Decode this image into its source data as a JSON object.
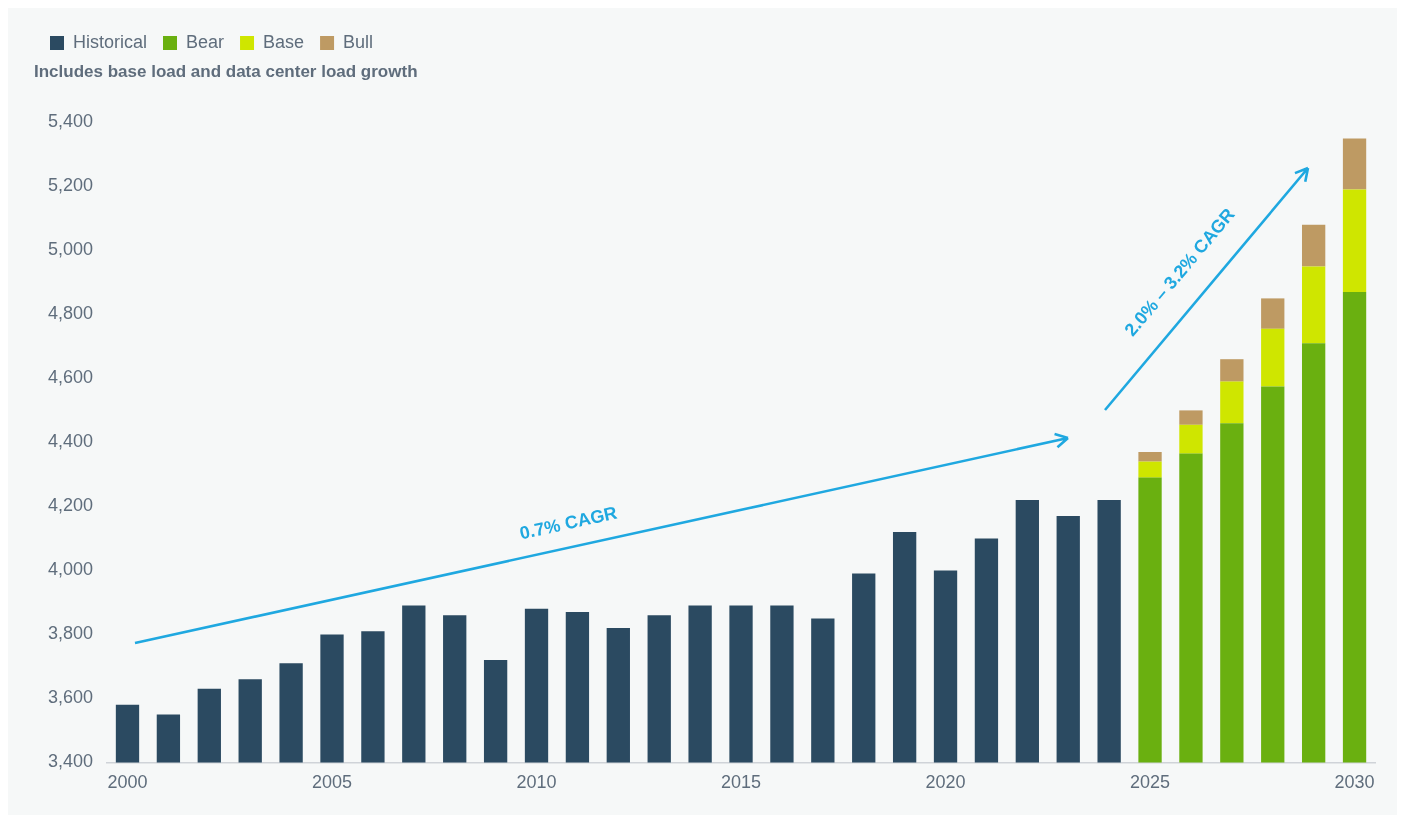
{
  "chart_data": {
    "type": "bar",
    "subtitle": "Includes base load and data center load growth",
    "categories": [
      "2000",
      null,
      null,
      null,
      null,
      "2005",
      null,
      null,
      null,
      null,
      "2010",
      null,
      null,
      null,
      null,
      "2015",
      null,
      null,
      null,
      null,
      "2020",
      null,
      null,
      null,
      null,
      "2025",
      null,
      null,
      null,
      null,
      "2030"
    ],
    "series": [
      {
        "name": "Historical",
        "color": "#2b4a61",
        "values": [
          3580,
          3550,
          3630,
          3660,
          3710,
          3800,
          3810,
          3890,
          3860,
          3720,
          3880,
          3870,
          3820,
          3860,
          3890,
          3890,
          3890,
          3850,
          3990,
          4120,
          4000,
          4100,
          4220,
          4170,
          4220,
          null,
          null,
          null,
          null,
          null,
          null
        ]
      },
      {
        "name": "Bear",
        "color": "#6ab010",
        "values": [
          null,
          null,
          null,
          null,
          null,
          null,
          null,
          null,
          null,
          null,
          null,
          null,
          null,
          null,
          null,
          null,
          null,
          null,
          null,
          null,
          null,
          null,
          null,
          null,
          null,
          4290,
          4365,
          4460,
          4575,
          4710,
          4870
        ]
      },
      {
        "name": "Base",
        "color": "#cfe600",
        "values": [
          null,
          null,
          null,
          null,
          null,
          null,
          null,
          null,
          null,
          null,
          null,
          null,
          null,
          null,
          null,
          null,
          null,
          null,
          null,
          null,
          null,
          null,
          null,
          null,
          null,
          50,
          90,
          130,
          180,
          240,
          320
        ],
        "base": [
          null,
          null,
          null,
          null,
          null,
          null,
          null,
          null,
          null,
          null,
          null,
          null,
          null,
          null,
          null,
          null,
          null,
          null,
          null,
          null,
          null,
          null,
          null,
          null,
          null,
          4290,
          4365,
          4460,
          4575,
          4710,
          4870
        ]
      },
      {
        "name": "Bull",
        "color": "#be9a63",
        "values": [
          null,
          null,
          null,
          null,
          null,
          null,
          null,
          null,
          null,
          null,
          null,
          null,
          null,
          null,
          null,
          null,
          null,
          null,
          null,
          null,
          null,
          null,
          null,
          null,
          null,
          30,
          45,
          70,
          95,
          130,
          160
        ],
        "base": [
          null,
          null,
          null,
          null,
          null,
          null,
          null,
          null,
          null,
          null,
          null,
          null,
          null,
          null,
          null,
          null,
          null,
          null,
          null,
          null,
          null,
          null,
          null,
          null,
          null,
          4340,
          4455,
          4590,
          4755,
          4950,
          5190
        ]
      }
    ],
    "ylim": [
      3400,
      5400
    ],
    "yticks": [
      {
        "value": 3400,
        "label": "3,400"
      },
      {
        "value": 3600,
        "label": "3,600"
      },
      {
        "value": 3800,
        "label": "3,800"
      },
      {
        "value": 4000,
        "label": "4,000"
      },
      {
        "value": 4200,
        "label": "4,200"
      },
      {
        "value": 4400,
        "label": "4,400"
      },
      {
        "value": 4600,
        "label": "4,600"
      },
      {
        "value": 4800,
        "label": "4,800"
      },
      {
        "value": 5000,
        "label": "5,000"
      },
      {
        "value": 5200,
        "label": "5,200"
      },
      {
        "value": 5400,
        "label": "5,400"
      }
    ],
    "legend": "top left",
    "annotations": [
      "0.7% CAGR",
      "2.0% – 3.2% CAGR"
    ]
  }
}
